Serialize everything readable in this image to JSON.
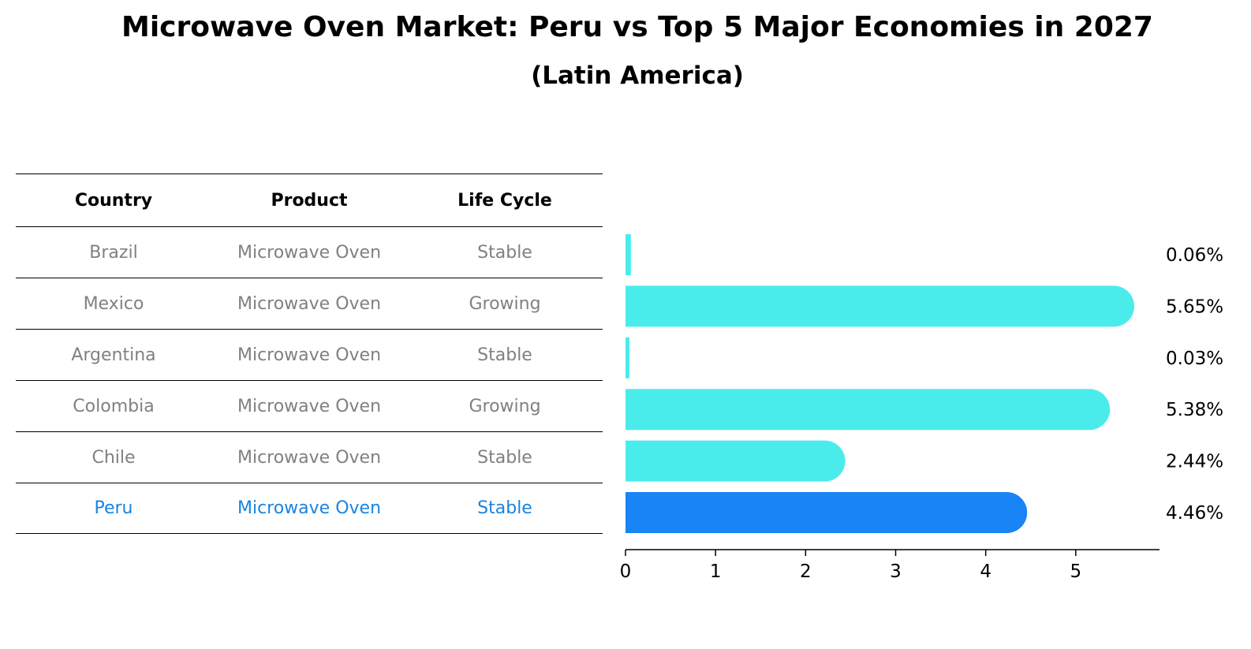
{
  "title": "Microwave Oven Market: Peru vs Top 5 Major Economies in 2027",
  "subtitle": "(Latin America)",
  "table": {
    "headers": [
      "Country",
      "Product",
      "Life Cycle"
    ],
    "rows": [
      {
        "country": "Brazil",
        "product": "Microwave Oven",
        "life_cycle": "Stable"
      },
      {
        "country": "Mexico",
        "product": "Microwave Oven",
        "life_cycle": "Growing"
      },
      {
        "country": "Argentina",
        "product": "Microwave Oven",
        "life_cycle": "Stable"
      },
      {
        "country": "Colombia",
        "product": "Microwave Oven",
        "life_cycle": "Growing"
      },
      {
        "country": "Chile",
        "product": "Microwave Oven",
        "life_cycle": "Stable"
      },
      {
        "country": "Peru",
        "product": "Microwave Oven",
        "life_cycle": "Stable",
        "highlight": true
      }
    ]
  },
  "chart_data": {
    "type": "bar",
    "orientation": "horizontal",
    "categories": [
      "Brazil",
      "Mexico",
      "Argentina",
      "Colombia",
      "Chile",
      "Peru"
    ],
    "values": [
      0.06,
      5.65,
      0.03,
      5.38,
      2.44,
      4.46
    ],
    "labels": [
      "0.06%",
      "5.65%",
      "0.03%",
      "5.38%",
      "2.44%",
      "4.46%"
    ],
    "highlight": "Peru",
    "xlim": [
      0,
      5.93
    ],
    "xticks": [
      0,
      1,
      2,
      3,
      4,
      5
    ],
    "grid": false
  },
  "colors": {
    "bar": "#4aeceb",
    "highlight": "#1884f5",
    "muted_text": "#808080",
    "highlight_text": "#1884e0"
  }
}
